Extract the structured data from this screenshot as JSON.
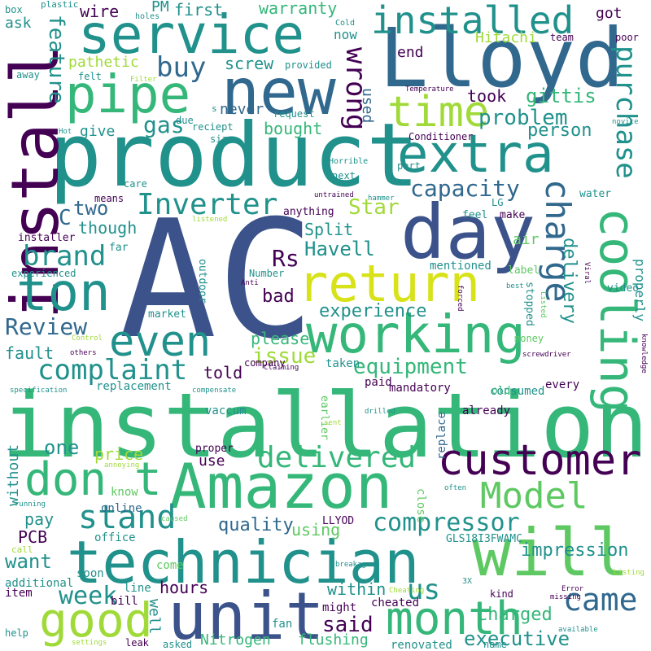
{
  "palette": {
    "background": "#ffffff",
    "dark_purple": "#440154",
    "indigo": "#3b528b",
    "blue": "#31688e",
    "teal": "#21918c",
    "green": "#35b779",
    "light_green": "#5ec962",
    "yellow_green": "#a0da39",
    "yellow": "#d7e219"
  },
  "words": {
    "ac": "AC",
    "installation": "installation",
    "product": "product",
    "lloyd": "Lloyd",
    "technician": "technician",
    "amazon": "Amazon",
    "install": "install",
    "day": "day",
    "service": "service",
    "new": "new",
    "pipe": "pipe",
    "unit": "unit",
    "will": "will",
    "customer": "customer",
    "working": "working",
    "extra": "extra",
    "return": "return",
    "ton": "ton",
    "cooling": "cooling",
    "even": "even",
    "time": "time",
    "good": "good",
    "month": "month",
    "installed": "installed",
    "don_t": "don t",
    "model": "Model",
    "charge": "charge",
    "stand": "stand",
    "delivered": "delivered",
    "purchase": "purchase",
    "complaint": "complaint",
    "came": "came",
    "wrong": "wrong",
    "inverter": "Inverter",
    "capacity": "capacity",
    "compressor": "compressor",
    "brand": "brand",
    "review": "Review",
    "executive": "executive",
    "equipment": "equipment",
    "feature": "feature",
    "problem": "problem",
    "buy": "buy",
    "gas": "gas",
    "havell": "Havell",
    "experience": "experience",
    "issue": "issue",
    "star": "Star",
    "week": "week",
    "said": "said",
    "us": "us",
    "rs": "Rs",
    "split": "Split",
    "delivery": "delivery",
    "impression": "impression",
    "quality": "quality",
    "want": "want",
    "charged": "charged",
    "hours": "hours",
    "within": "within",
    "bad": "bad",
    "fault": "fault",
    "told": "told",
    "please": "please",
    "price": "price",
    "one": "one",
    "using": "using",
    "pay": "pay",
    "pcb": "PCB",
    "person": "person",
    "took": "took",
    "gittis": "gittis",
    "bought": "bought",
    "two": "two",
    "though": "though",
    "c": "C",
    "screw": "screw",
    "warranty": "warranty",
    "first": "first",
    "pm": "PM",
    "wire": "wire",
    "ask": "ask",
    "pathetic": "pathetic",
    "hitachi": "Hitachi",
    "now": "now",
    "got": "got",
    "end": "end",
    "used": "used",
    "never": "never",
    "give": "give",
    "properly": "properly",
    "air": "air",
    "nitrogen": "Nitrogen",
    "flushing": "flushing",
    "well": "well",
    "cheated": "cheated",
    "without": "without",
    "use": "use",
    "renovated": "renovated",
    "lloyd_caps": "LLYOD",
    "gls": "GLS18I3FWAMC",
    "replace": "replace",
    "already": "already",
    "mandatory": "mandatory",
    "vaccum": "vaccum",
    "fan": "fan",
    "might": "might",
    "line": "line",
    "bill": "bill",
    "item": "item",
    "additional": "additional",
    "soon": "soon",
    "office": "office",
    "online": "online",
    "know": "know",
    "come": "come",
    "proper": "proper",
    "close": "close",
    "mentioned": "mentioned",
    "experienced": "experienced",
    "replacement": "replacement",
    "company": "company",
    "paid": "paid",
    "taken": "taken",
    "consumed": "consumed",
    "every": "every",
    "old": "old",
    "earlier": "earlier",
    "market": "market",
    "outdoor": "outdoor",
    "installer": "installer",
    "far": "far",
    "means": "means",
    "care": "care",
    "anything": "anything",
    "feel": "feel",
    "make": "make",
    "water": "water",
    "lg": "LG",
    "label": "label",
    "video": "video",
    "stopped": "stopped",
    "money": "money",
    "number": "Number",
    "next": "next",
    "part": "part",
    "conditioner": "Conditioner",
    "size": "size",
    "due": "due",
    "reciept": "reciept",
    "request": "request",
    "provided": "provided",
    "felt": "felt",
    "away": "away",
    "box": "box",
    "plastic": "plastic",
    "holes": "holes",
    "cold": "Cold",
    "team": "team",
    "poor": "poor",
    "filter": "Filter",
    "temperature": "Temperature",
    "novice": "novice",
    "hot": "Hot",
    "s": "s",
    "horrible": "Horrible",
    "hammer": "hammer",
    "untrained": "untrained",
    "listened": "listened",
    "viral": "Viral",
    "forced": "forced",
    "best": "best",
    "listed": "Listed",
    "knowledge": "knowledge",
    "anti": "Anti",
    "control": "Control",
    "others": "others",
    "claiming": "Claiming",
    "specification": "specification",
    "compensate": "compensate",
    "screwdriver": "screwdriver",
    "drilled": "drilled",
    "sent": "sent",
    "annoying": "annoying",
    "often": "often",
    "running": "running",
    "call": "call",
    "caused": "caused",
    "breakage": "breakage",
    "cheating": "Cheating",
    "x3": "3X",
    "kind": "kind",
    "error": "Error",
    "missing": "missing",
    "available": "available",
    "listing": "Listing",
    "settings": "settings",
    "help": "help",
    "leak": "leak",
    "asked": "asked",
    "name": "name"
  }
}
